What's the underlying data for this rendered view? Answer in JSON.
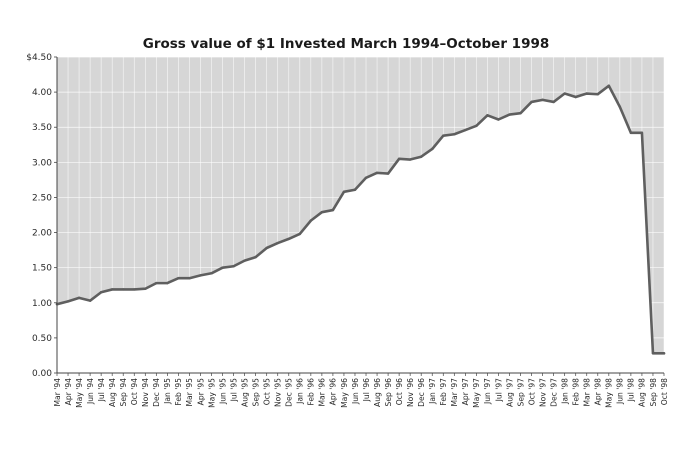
{
  "chart_data": {
    "type": "line",
    "title": "Gross value of $1 Invested March 1994–October 1998",
    "xlabel": "",
    "ylabel": "",
    "ylim": [
      0,
      4.5
    ],
    "yticks": [
      {
        "value": 0,
        "label": "0.00"
      },
      {
        "value": 0.5,
        "label": "0.50"
      },
      {
        "value": 1.0,
        "label": "1.00"
      },
      {
        "value": 1.5,
        "label": "1.50"
      },
      {
        "value": 2.0,
        "label": "2.00"
      },
      {
        "value": 2.5,
        "label": "2.50"
      },
      {
        "value": 3.0,
        "label": "3.00"
      },
      {
        "value": 3.5,
        "label": "3.50"
      },
      {
        "value": 4.0,
        "label": "4.00"
      },
      {
        "value": 4.5,
        "label": "$4.50"
      }
    ],
    "grid": true,
    "area_shading": "above-line",
    "colors": {
      "shade": "#d6d6d6",
      "line": "#5f5f5f",
      "grid": "#ffffff",
      "axis": "#444444"
    },
    "categories": [
      "Mar '94",
      "Apr '94",
      "May '94",
      "Jun '94",
      "Jul '94",
      "Aug '94",
      "Sep '94",
      "Oct '94",
      "Nov '94",
      "Dec '94",
      "Jan '95",
      "Feb '95",
      "Mar '95",
      "Apr '95",
      "May '95",
      "Jun '95",
      "Jul '95",
      "Aug '95",
      "Sep '95",
      "Oct '95",
      "Nov '95",
      "Dec '95",
      "Jan '96",
      "Feb '96",
      "Mar '96",
      "Apr '96",
      "May '96",
      "Jun '96",
      "Jul '96",
      "Aug '96",
      "Sep '96",
      "Oct '96",
      "Nov '96",
      "Dec '96",
      "Jan '97",
      "Feb '97",
      "Mar '97",
      "Apr '97",
      "May '97",
      "Jun '97",
      "Jul '97",
      "Aug '97",
      "Sep '97",
      "Oct '97",
      "Nov '97",
      "Dec '97",
      "Jan '98",
      "Feb '98",
      "Mar '98",
      "Apr '98",
      "May '98",
      "Jun '98",
      "Jul '98",
      "Aug '98",
      "Sep '98",
      "Oct '98"
    ],
    "values": [
      0.98,
      1.02,
      1.07,
      1.03,
      1.15,
      1.19,
      1.19,
      1.19,
      1.2,
      1.28,
      1.28,
      1.35,
      1.35,
      1.39,
      1.42,
      1.5,
      1.52,
      1.6,
      1.65,
      1.78,
      1.85,
      1.91,
      1.98,
      2.17,
      2.29,
      2.32,
      2.58,
      2.61,
      2.78,
      2.85,
      2.84,
      3.05,
      3.04,
      3.08,
      3.19,
      3.38,
      3.4,
      3.46,
      3.52,
      3.67,
      3.61,
      3.68,
      3.7,
      3.86,
      3.89,
      3.86,
      3.98,
      3.93,
      3.98,
      3.97,
      4.09,
      3.79,
      3.42,
      3.42,
      0.28,
      0.28
    ]
  }
}
